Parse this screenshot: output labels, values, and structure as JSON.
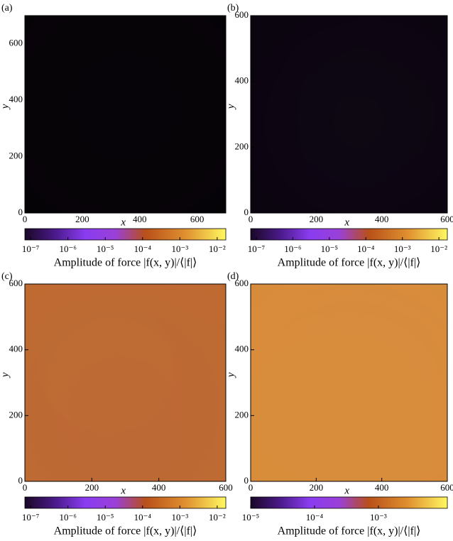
{
  "chart_data": [
    {
      "type": "heatmap",
      "panel_label": "(a)",
      "x_label": "x",
      "y_label": "y",
      "xlim": [
        0,
        700
      ],
      "ylim": [
        0,
        700
      ],
      "xticks": [
        0,
        200,
        400,
        600
      ],
      "yticks": [
        0,
        200,
        400,
        600
      ],
      "colorbar": {
        "log": true,
        "lim": [
          7e-08,
          0.017
        ],
        "label": "Amplitude of force |f(x, y)|/⟨|f|⟩",
        "ticks": [
          {
            "value": 1e-07,
            "label": "10⁻⁷"
          },
          {
            "value": 1e-06,
            "label": "10⁻⁶"
          },
          {
            "value": 1e-05,
            "label": "10⁻⁵"
          },
          {
            "value": 0.0001,
            "label": "10⁻⁴"
          },
          {
            "value": 0.001,
            "label": "10⁻³"
          },
          {
            "value": 0.01,
            "label": "10⁻²"
          }
        ]
      }
    },
    {
      "type": "heatmap",
      "panel_label": "(b)",
      "x_label": "x",
      "y_label": "y",
      "xlim": [
        0,
        600
      ],
      "ylim": [
        0,
        600
      ],
      "xticks": [
        0,
        200,
        400,
        600
      ],
      "yticks": [
        0,
        200,
        400,
        600
      ],
      "colorbar": {
        "log": true,
        "lim": [
          7e-08,
          0.017
        ],
        "label": "Amplitude of force |f(x, y)|/⟨|f|⟩",
        "ticks": [
          {
            "value": 1e-07,
            "label": "10⁻⁷"
          },
          {
            "value": 1e-06,
            "label": "10⁻⁶"
          },
          {
            "value": 1e-05,
            "label": "10⁻⁵"
          },
          {
            "value": 0.0001,
            "label": "10⁻⁴"
          },
          {
            "value": 0.001,
            "label": "10⁻³"
          },
          {
            "value": 0.01,
            "label": "10⁻²"
          }
        ]
      }
    },
    {
      "type": "heatmap",
      "panel_label": "(c)",
      "x_label": "x",
      "y_label": "y",
      "xlim": [
        0,
        600
      ],
      "ylim": [
        0,
        600
      ],
      "xticks": [
        0,
        200,
        400,
        600
      ],
      "yticks": [
        0,
        200,
        400,
        600
      ],
      "colorbar": {
        "log": true,
        "lim": [
          7e-08,
          0.017
        ],
        "label": "Amplitude of force |f(x, y)|/⟨|f|⟩",
        "ticks": [
          {
            "value": 1e-07,
            "label": "10⁻⁷"
          },
          {
            "value": 1e-06,
            "label": "10⁻⁶"
          },
          {
            "value": 1e-05,
            "label": "10⁻⁵"
          },
          {
            "value": 0.0001,
            "label": "10⁻⁴"
          },
          {
            "value": 0.001,
            "label": "10⁻³"
          },
          {
            "value": 0.01,
            "label": "10⁻²"
          }
        ]
      }
    },
    {
      "type": "heatmap",
      "panel_label": "(d)",
      "x_label": "x",
      "y_label": "y",
      "xlim": [
        0,
        600
      ],
      "ylim": [
        0,
        600
      ],
      "xticks": [
        0,
        200,
        400,
        600
      ],
      "yticks": [
        0,
        200,
        400,
        600
      ],
      "colorbar": {
        "log": true,
        "lim": [
          1e-05,
          0.012
        ],
        "label": "Amplitude of force |f(x, y)|/⟨|f|⟩",
        "ticks": [
          {
            "value": 1e-05,
            "label": "10⁻⁵"
          },
          {
            "value": 0.0001,
            "label": "10⁻⁴"
          },
          {
            "value": 0.001,
            "label": "10⁻³"
          }
        ]
      }
    }
  ]
}
